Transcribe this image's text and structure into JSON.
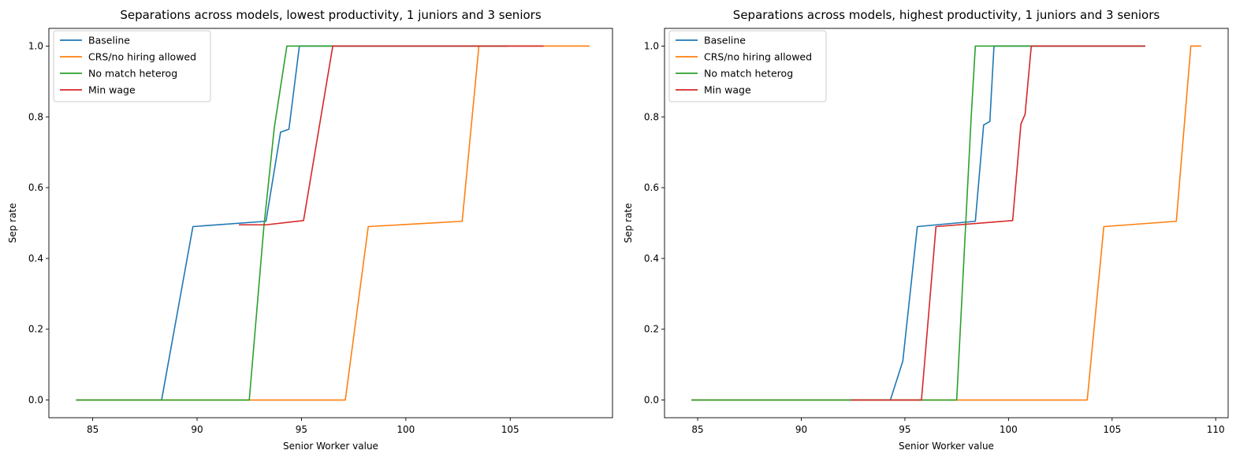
{
  "chart_data": [
    {
      "type": "line",
      "title": "Separations across models, lowest productivity, 1 juniors and 3 seniors",
      "xlabel": "Senior Worker value",
      "ylabel": "Sep rate",
      "xlim": [
        82.9,
        109.9
      ],
      "ylim": [
        -0.05,
        1.05
      ],
      "xticks": [
        85,
        90,
        95,
        100,
        105
      ],
      "yticks": [
        0.0,
        0.2,
        0.4,
        0.6,
        0.8,
        1.0
      ],
      "legend": "top-left",
      "grid": false,
      "series": [
        {
          "name": "Baseline",
          "color": "#1f77b4",
          "points": [
            [
              84.2,
              0
            ],
            [
              88.3,
              0
            ],
            [
              89.8,
              0.49
            ],
            [
              93.3,
              0.505
            ],
            [
              94.0,
              0.757
            ],
            [
              94.4,
              0.765
            ],
            [
              94.9,
              1.0
            ],
            [
              104.9,
              1.0
            ]
          ]
        },
        {
          "name": "CRS/no hiring allowed",
          "color": "#ff7f0e",
          "points": [
            [
              84.2,
              0
            ],
            [
              97.1,
              0
            ],
            [
              98.2,
              0.49
            ],
            [
              102.7,
              0.505
            ],
            [
              103.5,
              1.0
            ],
            [
              108.8,
              1.0
            ]
          ]
        },
        {
          "name": "No match heterog",
          "color": "#2ca02c",
          "points": [
            [
              84.2,
              0
            ],
            [
              92.5,
              0
            ],
            [
              93.2,
              0.49
            ],
            [
              93.7,
              0.77
            ],
            [
              94.3,
              1.0
            ],
            [
              104.9,
              1.0
            ]
          ]
        },
        {
          "name": "Min wage",
          "color": "#d62728",
          "points": [
            [
              92.0,
              0.495
            ],
            [
              93.3,
              0.495
            ],
            [
              95.1,
              0.507
            ],
            [
              96.5,
              1.0
            ],
            [
              106.6,
              1.0
            ]
          ]
        }
      ]
    },
    {
      "type": "line",
      "title": "Separations across models, highest productivity, 1 juniors and 3 seniors",
      "xlabel": "Senior Worker value",
      "ylabel": "Sep rate",
      "xlim": [
        83.4,
        110.6
      ],
      "ylim": [
        -0.05,
        1.05
      ],
      "xticks": [
        85,
        90,
        95,
        100,
        105,
        110
      ],
      "yticks": [
        0.0,
        0.2,
        0.4,
        0.6,
        0.8,
        1.0
      ],
      "legend": "top-left",
      "grid": false,
      "series": [
        {
          "name": "Baseline",
          "color": "#1f77b4",
          "points": [
            [
              84.7,
              0
            ],
            [
              94.3,
              0
            ],
            [
              94.9,
              0.11
            ],
            [
              95.6,
              0.49
            ],
            [
              98.4,
              0.505
            ],
            [
              98.8,
              0.777
            ],
            [
              99.1,
              0.787
            ],
            [
              99.3,
              1.0
            ],
            [
              106.6,
              1.0
            ]
          ]
        },
        {
          "name": "CRS/no hiring allowed",
          "color": "#ff7f0e",
          "points": [
            [
              84.7,
              0
            ],
            [
              103.8,
              0
            ],
            [
              104.6,
              0.49
            ],
            [
              108.1,
              0.505
            ],
            [
              108.8,
              1.0
            ],
            [
              109.3,
              1.0
            ]
          ]
        },
        {
          "name": "No match heterog",
          "color": "#2ca02c",
          "points": [
            [
              84.7,
              0
            ],
            [
              97.5,
              0
            ],
            [
              98.2,
              0.8
            ],
            [
              98.4,
              1.0
            ],
            [
              106.6,
              1.0
            ]
          ]
        },
        {
          "name": "Min wage",
          "color": "#d62728",
          "points": [
            [
              92.4,
              0
            ],
            [
              95.8,
              0
            ],
            [
              96.5,
              0.49
            ],
            [
              100.2,
              0.507
            ],
            [
              100.6,
              0.78
            ],
            [
              100.8,
              0.807
            ],
            [
              101.1,
              1.0
            ],
            [
              106.6,
              1.0
            ]
          ]
        }
      ]
    }
  ]
}
